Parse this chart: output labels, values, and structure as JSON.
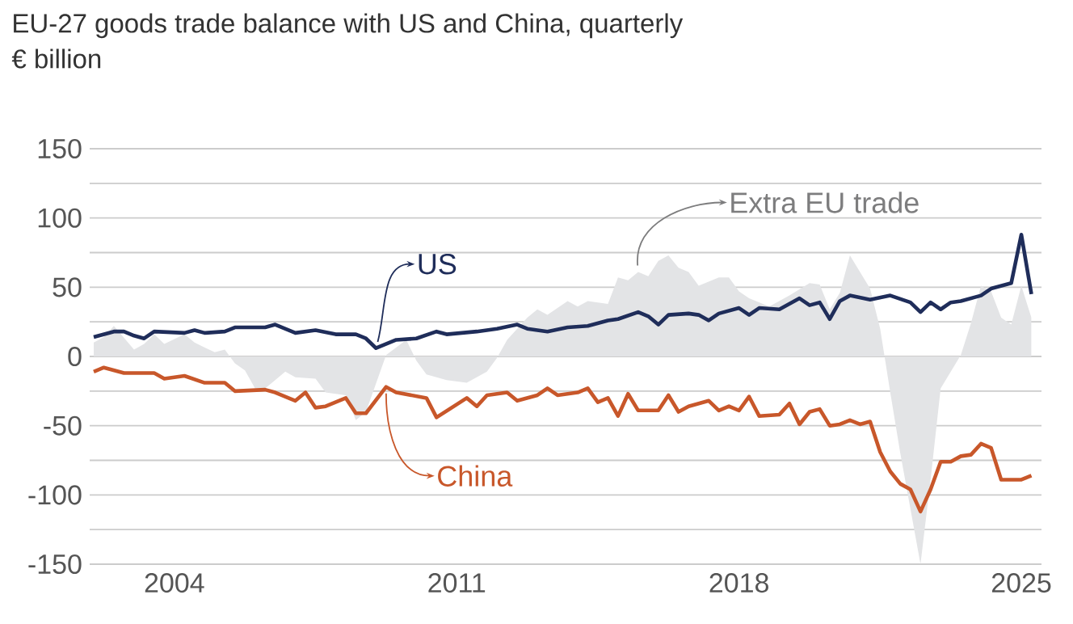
{
  "chart_data": {
    "type": "line",
    "title": "EU-27 goods trade balance with US and China, quarterly",
    "subtitle": "€ billion",
    "xlim": [
      2001.9,
      2025.5
    ],
    "xticks": [
      2004,
      2011,
      2018,
      2025
    ],
    "ylim": [
      -150,
      150
    ],
    "yticks": [
      -150,
      {
        "value": -125,
        "label": null
      },
      -100,
      {
        "value": -75,
        "label": null
      },
      -50,
      {
        "value": -25,
        "label": null
      },
      0,
      {
        "value": 25,
        "label": null
      },
      50,
      {
        "value": 75,
        "label": null
      },
      100,
      {
        "value": 125,
        "label": null
      },
      150
    ],
    "grid": "y",
    "series": [
      {
        "type": "area",
        "color": "#e3e4e6",
        "x": [
          2002.0,
          2002.25,
          2002.5,
          2003.0,
          2003.25,
          2003.5,
          2003.75,
          2004.25,
          2004.5,
          2005.0,
          2005.25,
          2005.5,
          2005.75,
          2006.0,
          2006.25,
          2006.5,
          2006.75,
          2007.0,
          2007.5,
          2007.75,
          2008.25,
          2008.5,
          2008.75,
          2009.25,
          2009.75,
          2010.0,
          2010.25,
          2010.75,
          2011.25,
          2011.75,
          2012.0,
          2012.25,
          2012.75,
          2013.0,
          2013.25,
          2013.75,
          2014.0,
          2014.25,
          2014.75,
          2015.0,
          2015.25,
          2015.5,
          2015.75,
          2016.0,
          2016.25,
          2016.5,
          2016.75,
          2017.0,
          2017.5,
          2017.75,
          2018.0,
          2018.25,
          2018.75,
          2019.25,
          2019.75,
          2020.0,
          2020.25,
          2020.5,
          2020.75,
          2021.25,
          2021.5,
          2021.75,
          2022.0,
          2022.25,
          2022.5,
          2022.75,
          2023.0,
          2023.5,
          2023.75,
          2024.0,
          2024.25,
          2024.5,
          2024.75,
          2025.0,
          2025.25
        ],
        "values": [
          10,
          14,
          22,
          5,
          9,
          16,
          9,
          16,
          10,
          3,
          5,
          -5,
          -10,
          -23,
          -23,
          -17,
          -11,
          -15,
          -16,
          -26,
          -28,
          -46,
          -40,
          1,
          12,
          -3,
          -13,
          -17,
          -19,
          -11,
          -1,
          12,
          28,
          34,
          30,
          40,
          36,
          40,
          38,
          57,
          55,
          61,
          58,
          69,
          73,
          64,
          61,
          51,
          57,
          57,
          47,
          42,
          36,
          44,
          53,
          52,
          34,
          46,
          73,
          49,
          20,
          -26,
          -70,
          -110,
          -150,
          -89,
          -23,
          1,
          24,
          51,
          47,
          28,
          23,
          51,
          28
        ]
      },
      {
        "color": "#1f2d5a",
        "x": [
          2002.0,
          2002.5,
          2002.75,
          2003.0,
          2003.25,
          2003.5,
          2004.25,
          2004.5,
          2004.75,
          2005.25,
          2005.5,
          2006.25,
          2006.5,
          2007.0,
          2007.5,
          2008.0,
          2008.5,
          2008.75,
          2009.0,
          2009.5,
          2010.0,
          2010.5,
          2010.75,
          2011.5,
          2012.0,
          2012.5,
          2012.75,
          2013.25,
          2013.75,
          2014.25,
          2014.75,
          2015.0,
          2015.5,
          2015.75,
          2016.0,
          2016.25,
          2016.75,
          2017.0,
          2017.25,
          2017.5,
          2018.0,
          2018.25,
          2018.5,
          2019.0,
          2019.5,
          2019.75,
          2020.0,
          2020.25,
          2020.5,
          2020.75,
          2021.25,
          2021.75,
          2022.25,
          2022.5,
          2022.75,
          2023.0,
          2023.25,
          2023.5,
          2024.0,
          2024.25,
          2024.75,
          2025.0,
          2025.25
        ],
        "values": [
          14,
          18,
          18,
          15,
          13,
          18,
          17,
          19,
          17,
          18,
          21,
          21,
          23,
          17,
          19,
          16,
          16,
          13,
          6,
          12,
          13,
          18,
          16,
          18,
          20,
          23,
          20,
          18,
          21,
          22,
          26,
          27,
          32,
          29,
          23,
          30,
          31,
          30,
          26,
          31,
          35,
          30,
          35,
          34,
          42,
          37,
          39,
          27,
          40,
          44,
          41,
          44,
          39,
          32,
          39,
          34,
          39,
          40,
          44,
          49,
          53,
          88,
          45
        ]
      },
      {
        "color": "#c8572a",
        "x": [
          2002.0,
          2002.25,
          2002.75,
          2003.5,
          2003.75,
          2004.25,
          2004.75,
          2005.25,
          2005.5,
          2006.25,
          2006.5,
          2007.0,
          2007.25,
          2007.5,
          2007.75,
          2008.25,
          2008.5,
          2008.75,
          2009.25,
          2009.5,
          2010.25,
          2010.5,
          2011.25,
          2011.5,
          2011.75,
          2012.25,
          2012.5,
          2013.0,
          2013.25,
          2013.5,
          2014.0,
          2014.25,
          2014.5,
          2014.75,
          2015.0,
          2015.25,
          2015.5,
          2016.0,
          2016.25,
          2016.5,
          2016.75,
          2017.25,
          2017.5,
          2017.75,
          2018.0,
          2018.25,
          2018.5,
          2019.0,
          2019.25,
          2019.5,
          2019.75,
          2020.0,
          2020.25,
          2020.5,
          2020.75,
          2021.0,
          2021.25,
          2021.5,
          2021.75,
          2022.0,
          2022.25,
          2022.5,
          2022.75,
          2023.0,
          2023.25,
          2023.5,
          2023.75,
          2024.0,
          2024.25,
          2024.5,
          2024.75,
          2025.0,
          2025.25
        ],
        "values": [
          -11,
          -8,
          -12,
          -12,
          -16,
          -14,
          -19,
          -19,
          -25,
          -24,
          -26,
          -32,
          -26,
          -37,
          -36,
          -30,
          -41,
          -41,
          -22,
          -26,
          -30,
          -44,
          -30,
          -36,
          -28,
          -26,
          -32,
          -28,
          -23,
          -28,
          -26,
          -23,
          -33,
          -30,
          -43,
          -27,
          -39,
          -39,
          -28,
          -40,
          -36,
          -32,
          -39,
          -36,
          -39,
          -29,
          -43,
          -42,
          -34,
          -49,
          -40,
          -38,
          -50,
          -49,
          -46,
          -49,
          -47,
          -69,
          -83,
          -92,
          -96,
          -112,
          -96,
          -76,
          -76,
          -72,
          -71,
          -63,
          -66,
          -89,
          -89,
          -89,
          -86
        ]
      }
    ],
    "annotations": [
      {
        "text": "US",
        "x": 2009.0,
        "y": 6
      },
      {
        "text": "China",
        "x": 2009.25,
        "y": -22
      },
      {
        "text": "Extra EU trade",
        "x": 2015.5,
        "y": 61
      }
    ]
  }
}
